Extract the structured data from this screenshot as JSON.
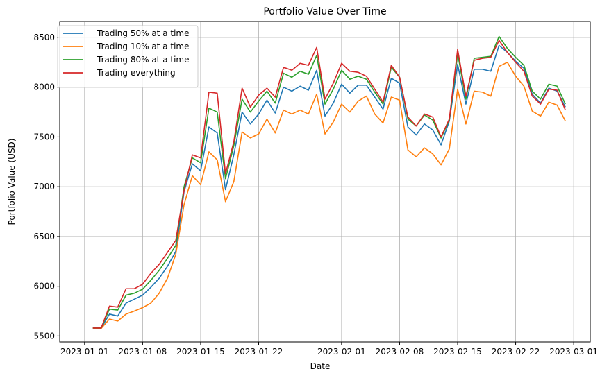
{
  "chart_data": {
    "type": "line",
    "title": "Portfolio Value Over Time",
    "xlabel": "Date",
    "ylabel": "Portfolio Value (USD)",
    "grid": true,
    "legend_position": "top-left",
    "x_ticks": [
      "2023-01-01",
      "2023-01-08",
      "2023-01-15",
      "2023-01-22",
      "2023-02-01",
      "2023-02-08",
      "2023-02-15",
      "2023-02-22",
      "2023-03-01"
    ],
    "y_ticks": [
      5500,
      6000,
      6500,
      7000,
      7500,
      8000,
      8500
    ],
    "ylim": [
      5440,
      8660
    ],
    "xlim": [
      "2022-12-29",
      "2023-03-03"
    ],
    "x": [
      "2023-01-02",
      "2023-01-03",
      "2023-01-04",
      "2023-01-05",
      "2023-01-06",
      "2023-01-07",
      "2023-01-08",
      "2023-01-09",
      "2023-01-10",
      "2023-01-11",
      "2023-01-12",
      "2023-01-13",
      "2023-01-14",
      "2023-01-15",
      "2023-01-16",
      "2023-01-17",
      "2023-01-18",
      "2023-01-19",
      "2023-01-20",
      "2023-01-21",
      "2023-01-22",
      "2023-01-23",
      "2023-01-24",
      "2023-01-25",
      "2023-01-26",
      "2023-01-27",
      "2023-01-28",
      "2023-01-29",
      "2023-01-30",
      "2023-01-31",
      "2023-02-01",
      "2023-02-02",
      "2023-02-03",
      "2023-02-04",
      "2023-02-05",
      "2023-02-06",
      "2023-02-07",
      "2023-02-08",
      "2023-02-09",
      "2023-02-10",
      "2023-02-11",
      "2023-02-12",
      "2023-02-13",
      "2023-02-14",
      "2023-02-15",
      "2023-02-16",
      "2023-02-17",
      "2023-02-18",
      "2023-02-19",
      "2023-02-20",
      "2023-02-21",
      "2023-02-22",
      "2023-02-23",
      "2023-02-24",
      "2023-02-25",
      "2023-02-26",
      "2023-02-27",
      "2023-02-28"
    ],
    "series": [
      {
        "name": "Trading 50% at a time",
        "color": "#1f77b4",
        "values": [
          5580,
          5578,
          5720,
          5700,
          5830,
          5870,
          5910,
          5990,
          6080,
          6200,
          6350,
          6950,
          7230,
          7160,
          7600,
          7540,
          6970,
          7320,
          7750,
          7630,
          7730,
          7870,
          7740,
          8000,
          7960,
          8010,
          7970,
          8170,
          7710,
          7840,
          8030,
          7940,
          8020,
          8020,
          7900,
          7780,
          8090,
          8040,
          7600,
          7520,
          7630,
          7570,
          7420,
          7660,
          8230,
          7830,
          8180,
          8180,
          8160,
          8420,
          8350,
          8260,
          8190,
          7930,
          7840,
          7990,
          7960,
          7800
        ]
      },
      {
        "name": "Trading 10% at a time",
        "color": "#ff7f0e",
        "values": [
          5580,
          5575,
          5670,
          5650,
          5720,
          5750,
          5785,
          5830,
          5930,
          6080,
          6320,
          6820,
          7110,
          7020,
          7350,
          7270,
          6850,
          7050,
          7550,
          7490,
          7530,
          7680,
          7540,
          7770,
          7730,
          7770,
          7730,
          7930,
          7530,
          7650,
          7830,
          7750,
          7860,
          7910,
          7730,
          7640,
          7900,
          7870,
          7370,
          7300,
          7390,
          7330,
          7220,
          7380,
          7980,
          7630,
          7960,
          7950,
          7910,
          8210,
          8250,
          8110,
          8010,
          7760,
          7710,
          7850,
          7820,
          7660
        ]
      },
      {
        "name": "Trading 80% at a time",
        "color": "#2ca02c",
        "values": [
          5580,
          5580,
          5770,
          5760,
          5910,
          5930,
          5970,
          6060,
          6160,
          6280,
          6410,
          7000,
          7290,
          7240,
          7790,
          7750,
          7080,
          7410,
          7880,
          7750,
          7860,
          7960,
          7840,
          8140,
          8100,
          8160,
          8130,
          8320,
          7830,
          7980,
          8170,
          8080,
          8110,
          8080,
          7950,
          7830,
          8200,
          8100,
          7680,
          7610,
          7720,
          7670,
          7490,
          7670,
          8340,
          7880,
          8290,
          8300,
          8310,
          8510,
          8390,
          8300,
          8220,
          7960,
          7880,
          8030,
          8010,
          7830
        ]
      },
      {
        "name": "Trading everything",
        "color": "#d62728",
        "values": [
          5580,
          5580,
          5800,
          5790,
          5975,
          5975,
          6020,
          6130,
          6220,
          6340,
          6460,
          6960,
          7320,
          7290,
          7950,
          7940,
          7130,
          7450,
          7990,
          7800,
          7920,
          7990,
          7900,
          8200,
          8170,
          8240,
          8220,
          8400,
          7880,
          8040,
          8240,
          8160,
          8150,
          8110,
          7980,
          7850,
          8220,
          8100,
          7700,
          7610,
          7730,
          7700,
          7500,
          7680,
          8380,
          7910,
          8270,
          8290,
          8300,
          8470,
          8350,
          8250,
          8160,
          7910,
          7830,
          7980,
          7970,
          7770
        ]
      }
    ]
  }
}
